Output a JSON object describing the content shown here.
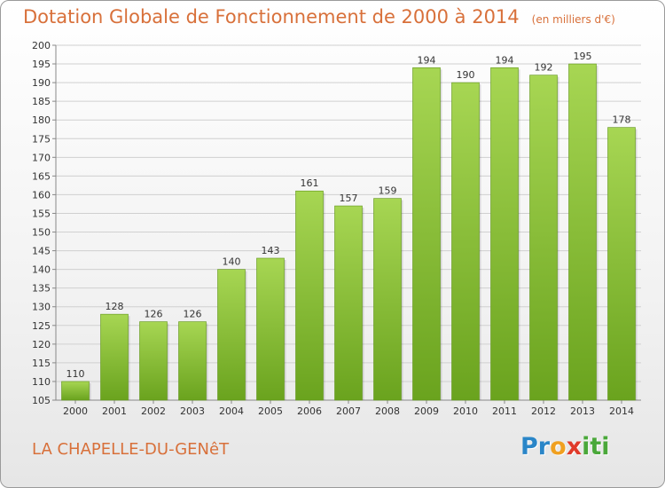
{
  "header": {
    "title": "Dotation Globale de Fonctionnement de 2000 à 2014",
    "subtitle": "(en milliers d'€)"
  },
  "footer": {
    "commune": "LA CHAPELLE-DU-GENêT",
    "logo_letters": [
      {
        "char": "P",
        "color": "#2a86c8"
      },
      {
        "char": "r",
        "color": "#2a86c8"
      },
      {
        "char": "o",
        "color": "#f0a020"
      },
      {
        "char": "x",
        "color": "#e03a2a"
      },
      {
        "char": "i",
        "color": "#4aa83a"
      },
      {
        "char": "t",
        "color": "#4aa83a"
      },
      {
        "char": "i",
        "color": "#4aa83a"
      }
    ]
  },
  "colors": {
    "bar_light": "#a7d653",
    "bar_dark": "#6aa31e",
    "accent": "#d8703a",
    "grid": "#d0d0d0"
  },
  "chart_data": {
    "type": "bar",
    "categories": [
      "2000",
      "2001",
      "2002",
      "2003",
      "2004",
      "2005",
      "2006",
      "2007",
      "2008",
      "2009",
      "2010",
      "2011",
      "2012",
      "2013",
      "2014"
    ],
    "values": [
      110,
      128,
      126,
      126,
      140,
      143,
      161,
      157,
      159,
      194,
      190,
      194,
      192,
      195,
      178
    ],
    "ylim": [
      105,
      200
    ],
    "yticks": [
      105,
      110,
      115,
      120,
      125,
      130,
      135,
      140,
      145,
      150,
      155,
      160,
      165,
      170,
      175,
      180,
      185,
      190,
      195,
      200
    ],
    "grid": true,
    "data_labels": true
  }
}
